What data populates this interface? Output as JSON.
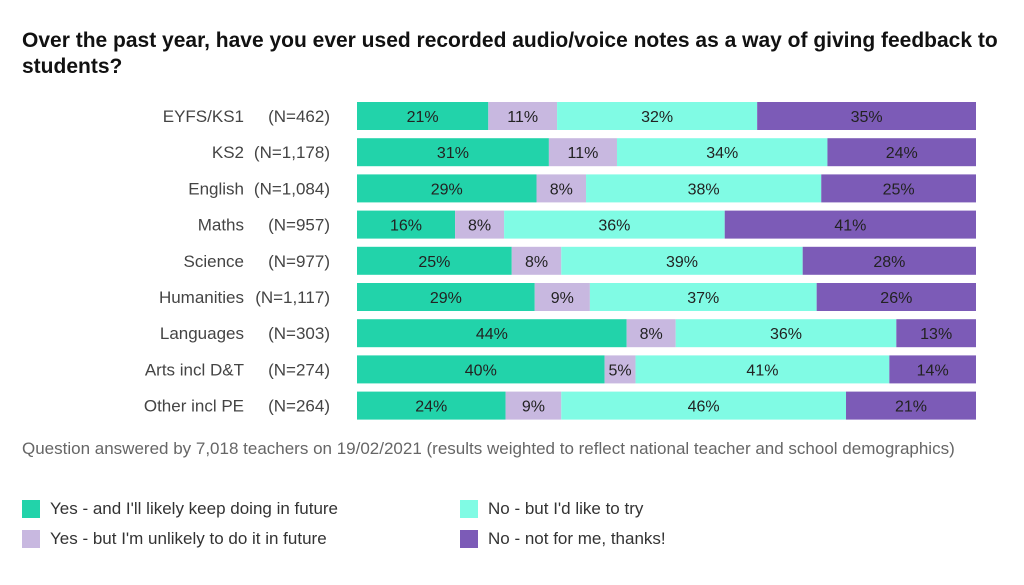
{
  "chart_data": {
    "type": "bar",
    "orientation": "horizontal",
    "stacked": true,
    "percent_stacked": true,
    "title": "Over the past year, have you ever used recorded audio/voice notes as a way of giving feedback to students?",
    "categories": [
      "EYFS/KS1",
      "KS2",
      "English",
      "Maths",
      "Science",
      "Humanities",
      "Languages",
      "Arts incl D&T",
      "Other incl PE"
    ],
    "sample_sizes": [
      "(N=462)",
      "(N=1,178)",
      "(N=1,084)",
      "(N=957)",
      "(N=977)",
      "(N=1,117)",
      "(N=303)",
      "(N=274)",
      "(N=264)"
    ],
    "series": [
      {
        "name": "Yes - and I'll likely keep doing in future",
        "color": "#22d3aa",
        "values": [
          21,
          31,
          29,
          16,
          25,
          29,
          44,
          40,
          24
        ]
      },
      {
        "name": "Yes - but I'm unlikely to do it in future",
        "color": "#c8b8e0",
        "values": [
          11,
          11,
          8,
          8,
          8,
          9,
          8,
          5,
          9
        ]
      },
      {
        "name": "No - but I'd like to try",
        "color": "#80fbe4",
        "values": [
          32,
          34,
          38,
          36,
          39,
          37,
          36,
          41,
          46
        ]
      },
      {
        "name": "No - not for me, thanks!",
        "color": "#7c5bb7",
        "values": [
          35,
          24,
          25,
          41,
          28,
          26,
          13,
          14,
          21
        ]
      }
    ],
    "value_suffix": "%",
    "legend_position": "bottom",
    "grid": false
  },
  "footnote": "Question answered by 7,018 teachers on 19/02/2021 (results weighted to reflect national teacher and school demographics)"
}
